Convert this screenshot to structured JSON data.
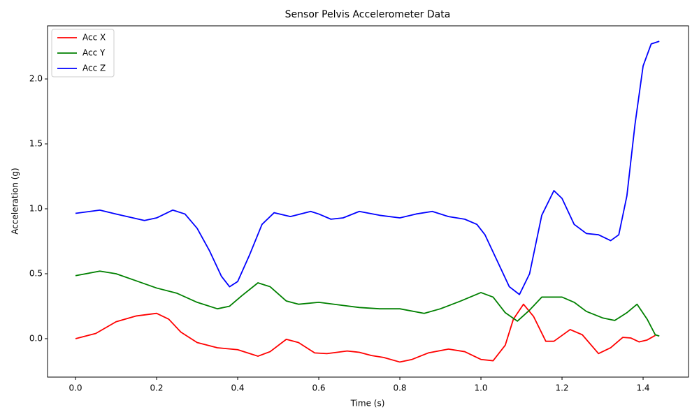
{
  "chart_data": {
    "type": "line",
    "title": "Sensor Pelvis Accelerometer Data",
    "xlabel": "Time (s)",
    "ylabel": "Acceleration (g)",
    "xlim": [
      -0.069,
      1.512
    ],
    "ylim": [
      -0.296,
      2.409
    ],
    "xticks": [
      {
        "value": 0,
        "label": "0.0"
      },
      0.2,
      0.4,
      0.6,
      0.8,
      {
        "value": 1,
        "label": "1.0"
      },
      1.2,
      1.4
    ],
    "yticks": [
      {
        "value": 0,
        "label": "0.0"
      },
      0.5,
      {
        "value": 1,
        "label": "1.0"
      },
      1.5,
      {
        "value": 2,
        "label": "2.0"
      }
    ],
    "legend": "upper left",
    "series": [
      {
        "name": "Acc X",
        "color": "#ff0000",
        "x": [
          0,
          0.05,
          0.1,
          0.15,
          0.2,
          0.23,
          0.26,
          0.3,
          0.35,
          0.4,
          0.45,
          0.48,
          0.52,
          0.55,
          0.59,
          0.62,
          0.67,
          0.7,
          0.73,
          0.76,
          0.8,
          0.83,
          0.87,
          0.92,
          0.96,
          1.0,
          1.03,
          1.06,
          1.08,
          1.105,
          1.13,
          1.16,
          1.18,
          1.22,
          1.25,
          1.29,
          1.32,
          1.35,
          1.37,
          1.39,
          1.41,
          1.43
        ],
        "values": [
          0.0,
          0.04,
          0.13,
          0.175,
          0.195,
          0.15,
          0.05,
          -0.03,
          -0.07,
          -0.085,
          -0.135,
          -0.1,
          -0.005,
          -0.03,
          -0.11,
          -0.115,
          -0.095,
          -0.105,
          -0.13,
          -0.145,
          -0.18,
          -0.16,
          -0.11,
          -0.08,
          -0.1,
          -0.16,
          -0.17,
          -0.05,
          0.15,
          0.265,
          0.17,
          -0.02,
          -0.02,
          0.07,
          0.03,
          -0.115,
          -0.07,
          0.01,
          0.005,
          -0.025,
          -0.01,
          0.025
        ]
      },
      {
        "name": "Acc Y",
        "color": "#008000",
        "x": [
          0,
          0.06,
          0.1,
          0.15,
          0.2,
          0.25,
          0.3,
          0.35,
          0.38,
          0.41,
          0.45,
          0.48,
          0.52,
          0.55,
          0.6,
          0.65,
          0.7,
          0.75,
          0.8,
          0.86,
          0.9,
          0.95,
          1.0,
          1.03,
          1.06,
          1.09,
          1.12,
          1.15,
          1.2,
          1.23,
          1.26,
          1.3,
          1.33,
          1.36,
          1.385,
          1.41,
          1.43,
          1.44
        ],
        "values": [
          0.485,
          0.52,
          0.5,
          0.445,
          0.39,
          0.35,
          0.28,
          0.23,
          0.25,
          0.33,
          0.43,
          0.4,
          0.29,
          0.265,
          0.28,
          0.26,
          0.24,
          0.23,
          0.23,
          0.195,
          0.23,
          0.29,
          0.355,
          0.32,
          0.2,
          0.135,
          0.22,
          0.32,
          0.32,
          0.28,
          0.21,
          0.16,
          0.14,
          0.2,
          0.265,
          0.15,
          0.03,
          0.02
        ]
      },
      {
        "name": "Acc Z",
        "color": "#0000ff",
        "x": [
          0,
          0.06,
          0.1,
          0.17,
          0.2,
          0.24,
          0.27,
          0.3,
          0.33,
          0.36,
          0.38,
          0.4,
          0.43,
          0.46,
          0.49,
          0.53,
          0.58,
          0.6,
          0.63,
          0.66,
          0.7,
          0.75,
          0.8,
          0.84,
          0.88,
          0.92,
          0.96,
          0.99,
          1.01,
          1.04,
          1.07,
          1.095,
          1.12,
          1.15,
          1.18,
          1.2,
          1.23,
          1.26,
          1.29,
          1.32,
          1.34,
          1.36,
          1.38,
          1.4,
          1.42,
          1.44
        ],
        "values": [
          0.965,
          0.99,
          0.96,
          0.91,
          0.93,
          0.99,
          0.96,
          0.85,
          0.68,
          0.48,
          0.4,
          0.44,
          0.65,
          0.88,
          0.97,
          0.94,
          0.98,
          0.96,
          0.92,
          0.93,
          0.98,
          0.95,
          0.93,
          0.96,
          0.98,
          0.94,
          0.92,
          0.88,
          0.8,
          0.6,
          0.4,
          0.34,
          0.5,
          0.95,
          1.14,
          1.08,
          0.88,
          0.81,
          0.8,
          0.755,
          0.8,
          1.1,
          1.65,
          2.1,
          2.27,
          2.29
        ]
      }
    ]
  }
}
